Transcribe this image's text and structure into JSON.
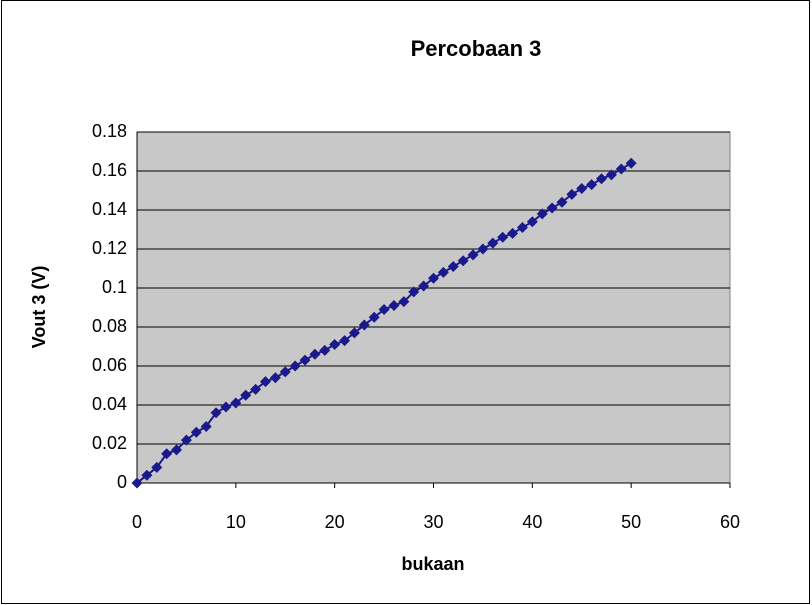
{
  "chart_data": {
    "type": "scatter",
    "title": "Percobaan 3",
    "x_label": "bukaan",
    "y_label": "Vout 3 (V)",
    "x": [
      0,
      1,
      2,
      3,
      4,
      5,
      6,
      7,
      8,
      9,
      10,
      11,
      12,
      13,
      14,
      15,
      16,
      17,
      18,
      19,
      20,
      21,
      22,
      23,
      24,
      25,
      26,
      27,
      28,
      29,
      30,
      31,
      32,
      33,
      34,
      35,
      36,
      37,
      38,
      39,
      40,
      41,
      42,
      43,
      44,
      45,
      46,
      47,
      48,
      49,
      50
    ],
    "values": [
      0,
      0.004,
      0.008,
      0.015,
      0.017,
      0.022,
      0.026,
      0.029,
      0.036,
      0.039,
      0.041,
      0.045,
      0.048,
      0.052,
      0.054,
      0.057,
      0.06,
      0.063,
      0.066,
      0.068,
      0.071,
      0.073,
      0.077,
      0.081,
      0.085,
      0.089,
      0.091,
      0.093,
      0.098,
      0.101,
      0.105,
      0.108,
      0.111,
      0.114,
      0.117,
      0.12,
      0.123,
      0.126,
      0.128,
      0.131,
      0.134,
      0.138,
      0.141,
      0.144,
      0.148,
      0.151,
      0.153,
      0.156,
      0.158,
      0.161,
      0.164
    ],
    "color": "#1a1a8c",
    "xlim": [
      0,
      60
    ],
    "xticks": [
      0,
      10,
      20,
      30,
      40,
      50,
      60
    ],
    "ylim": [
      0,
      0.18
    ],
    "yticks": [
      0,
      0.02,
      0.04,
      0.06,
      0.08,
      0.1,
      0.12,
      0.14,
      0.16,
      0.18
    ],
    "grid": true
  }
}
